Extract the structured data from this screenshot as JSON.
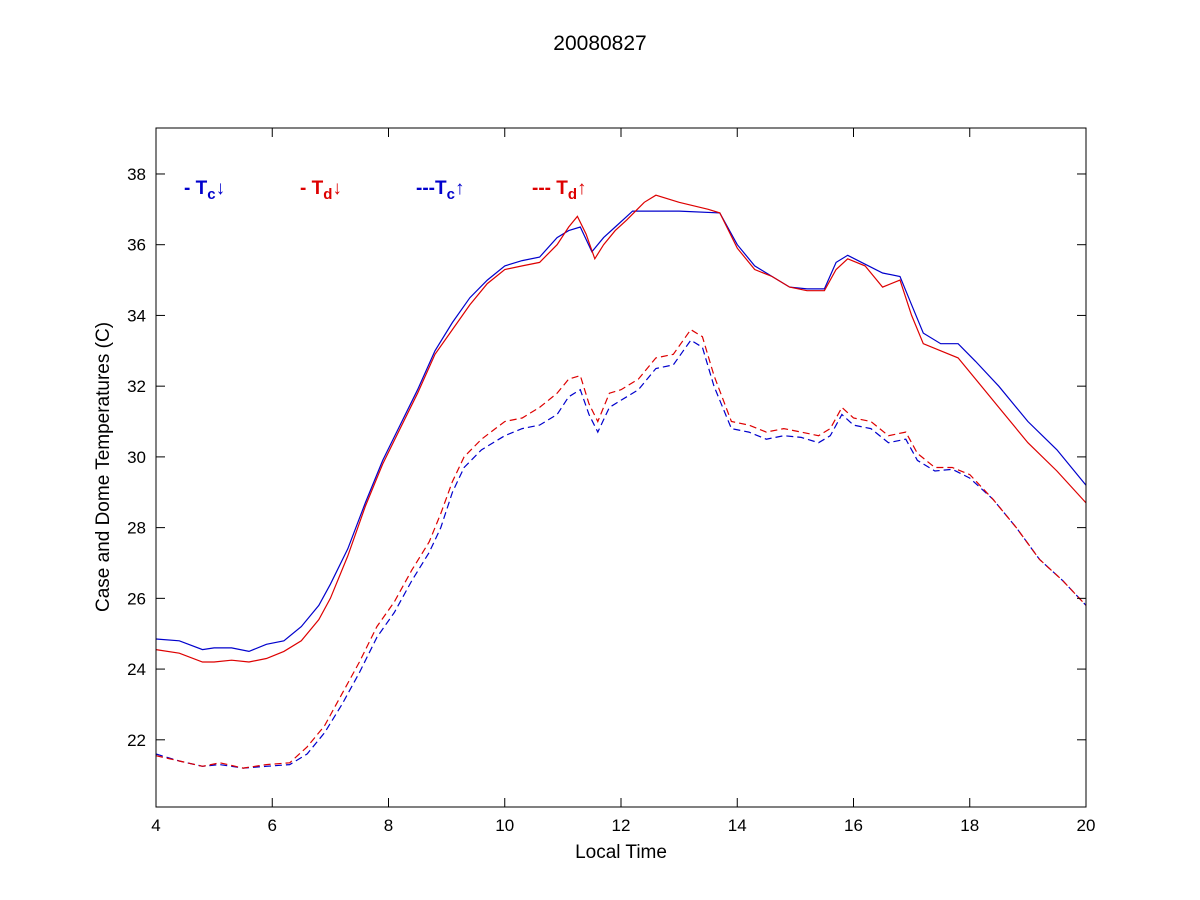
{
  "chart_data": {
    "type": "line",
    "title": "20080827",
    "xlabel": "Local Time",
    "ylabel": "Case and Dome Temperatures (C)",
    "xlim": [
      4,
      20
    ],
    "ylim": [
      20.1,
      39.3
    ],
    "xticks": [
      4,
      6,
      8,
      10,
      12,
      14,
      16,
      18,
      20
    ],
    "yticks": [
      22,
      24,
      26,
      28,
      30,
      32,
      34,
      36,
      38
    ],
    "grid": false,
    "legend_placement": "top-left",
    "series": [
      {
        "name": "Tc↓",
        "legend_prefix": "- T",
        "legend_sub": "c",
        "legend_arrow": "↓",
        "color": "#0000cc",
        "dash": "solid",
        "x": [
          4.0,
          4.4,
          4.8,
          5.0,
          5.3,
          5.6,
          5.9,
          6.2,
          6.5,
          6.8,
          7.0,
          7.3,
          7.6,
          7.9,
          8.2,
          8.5,
          8.8,
          9.1,
          9.4,
          9.7,
          10.0,
          10.3,
          10.6,
          10.9,
          11.1,
          11.3,
          11.5,
          11.7,
          11.9,
          12.1,
          12.2,
          13.0,
          13.7,
          14.0,
          14.3,
          14.6,
          14.9,
          15.2,
          15.5,
          15.7,
          15.9,
          16.2,
          16.5,
          16.8,
          17.0,
          17.2,
          17.5,
          17.8,
          18.1,
          18.5,
          19.0,
          19.5,
          20.0
        ],
        "values": [
          24.85,
          24.8,
          24.55,
          24.6,
          24.6,
          24.5,
          24.7,
          24.8,
          25.2,
          25.8,
          26.4,
          27.4,
          28.7,
          29.9,
          30.9,
          31.9,
          33.0,
          33.8,
          34.5,
          35.0,
          35.4,
          35.55,
          35.65,
          36.2,
          36.4,
          36.5,
          35.8,
          36.2,
          36.5,
          36.8,
          36.95,
          36.95,
          36.9,
          36.0,
          35.4,
          35.1,
          34.8,
          34.75,
          34.75,
          35.5,
          35.7,
          35.45,
          35.2,
          35.1,
          34.3,
          33.5,
          33.2,
          33.2,
          32.7,
          32.0,
          31.0,
          30.2,
          29.2
        ]
      },
      {
        "name": "Td↓",
        "legend_prefix": "- T",
        "legend_sub": "d",
        "legend_arrow": "↓",
        "color": "#dd0000",
        "dash": "solid",
        "x": [
          4.0,
          4.4,
          4.8,
          5.0,
          5.3,
          5.6,
          5.9,
          6.2,
          6.5,
          6.8,
          7.0,
          7.3,
          7.6,
          7.9,
          8.2,
          8.5,
          8.8,
          9.1,
          9.4,
          9.7,
          10.0,
          10.3,
          10.6,
          10.9,
          11.1,
          11.25,
          11.4,
          11.55,
          11.7,
          11.9,
          12.1,
          12.4,
          12.6,
          13.0,
          13.5,
          13.7,
          14.0,
          14.3,
          14.6,
          14.9,
          15.2,
          15.5,
          15.7,
          15.9,
          16.2,
          16.5,
          16.8,
          17.0,
          17.2,
          17.5,
          17.8,
          18.1,
          18.5,
          19.0,
          19.5,
          20.0
        ],
        "values": [
          24.55,
          24.45,
          24.2,
          24.2,
          24.25,
          24.2,
          24.3,
          24.5,
          24.8,
          25.4,
          26.0,
          27.2,
          28.6,
          29.8,
          30.8,
          31.8,
          32.9,
          33.6,
          34.3,
          34.9,
          35.3,
          35.4,
          35.5,
          36.0,
          36.5,
          36.8,
          36.3,
          35.6,
          36.0,
          36.4,
          36.7,
          37.2,
          37.4,
          37.2,
          37.0,
          36.9,
          35.9,
          35.3,
          35.1,
          34.8,
          34.7,
          34.7,
          35.3,
          35.6,
          35.4,
          34.8,
          35.0,
          34.0,
          33.2,
          33.0,
          32.8,
          32.2,
          31.4,
          30.4,
          29.6,
          28.7
        ]
      },
      {
        "name": "Tc↑",
        "legend_prefix": "---T",
        "legend_sub": "c",
        "legend_arrow": "↑",
        "color": "#0000cc",
        "dash": "dashed",
        "x": [
          4.0,
          4.4,
          4.8,
          5.1,
          5.5,
          5.9,
          6.3,
          6.6,
          6.9,
          7.2,
          7.5,
          7.8,
          8.1,
          8.4,
          8.7,
          8.9,
          9.1,
          9.3,
          9.6,
          10.0,
          10.3,
          10.6,
          10.9,
          11.1,
          11.3,
          11.45,
          11.6,
          11.8,
          12.0,
          12.3,
          12.6,
          12.9,
          13.2,
          13.4,
          13.6,
          13.9,
          14.2,
          14.5,
          14.8,
          15.1,
          15.4,
          15.6,
          15.8,
          16.0,
          16.3,
          16.6,
          16.9,
          17.1,
          17.4,
          17.7,
          18.0,
          18.4,
          18.8,
          19.2,
          19.6,
          20.0
        ],
        "values": [
          21.6,
          21.4,
          21.25,
          21.3,
          21.2,
          21.25,
          21.3,
          21.6,
          22.2,
          23.0,
          23.9,
          24.9,
          25.6,
          26.5,
          27.3,
          28.0,
          29.0,
          29.7,
          30.2,
          30.6,
          30.8,
          30.9,
          31.2,
          31.7,
          31.9,
          31.2,
          30.7,
          31.4,
          31.6,
          31.9,
          32.5,
          32.6,
          33.3,
          33.1,
          32.0,
          30.8,
          30.7,
          30.5,
          30.6,
          30.55,
          30.4,
          30.6,
          31.2,
          30.9,
          30.8,
          30.4,
          30.5,
          29.9,
          29.6,
          29.65,
          29.4,
          28.8,
          28.0,
          27.1,
          26.5,
          25.8
        ]
      },
      {
        "name": "Td↑",
        "legend_prefix": "--- T",
        "legend_sub": "d",
        "legend_arrow": "↑",
        "color": "#dd0000",
        "dash": "dashed",
        "x": [
          4.0,
          4.4,
          4.8,
          5.1,
          5.5,
          5.9,
          6.3,
          6.6,
          6.9,
          7.2,
          7.5,
          7.8,
          8.1,
          8.4,
          8.7,
          8.9,
          9.1,
          9.3,
          9.6,
          10.0,
          10.3,
          10.6,
          10.9,
          11.1,
          11.3,
          11.45,
          11.6,
          11.8,
          12.0,
          12.3,
          12.6,
          12.9,
          13.2,
          13.4,
          13.6,
          13.9,
          14.2,
          14.5,
          14.8,
          15.1,
          15.4,
          15.6,
          15.8,
          16.0,
          16.3,
          16.6,
          16.9,
          17.1,
          17.4,
          17.7,
          18.0,
          18.4,
          18.8,
          19.2,
          19.6,
          20.0
        ],
        "values": [
          21.55,
          21.4,
          21.25,
          21.35,
          21.2,
          21.3,
          21.35,
          21.8,
          22.4,
          23.3,
          24.2,
          25.2,
          25.9,
          26.8,
          27.6,
          28.4,
          29.3,
          30.0,
          30.5,
          31.0,
          31.1,
          31.4,
          31.8,
          32.2,
          32.3,
          31.5,
          31.0,
          31.8,
          31.9,
          32.2,
          32.8,
          32.9,
          33.6,
          33.4,
          32.3,
          31.0,
          30.9,
          30.7,
          30.8,
          30.7,
          30.6,
          30.8,
          31.4,
          31.1,
          31.0,
          30.6,
          30.7,
          30.1,
          29.7,
          29.7,
          29.5,
          28.8,
          28.0,
          27.1,
          26.5,
          25.8
        ]
      }
    ]
  }
}
